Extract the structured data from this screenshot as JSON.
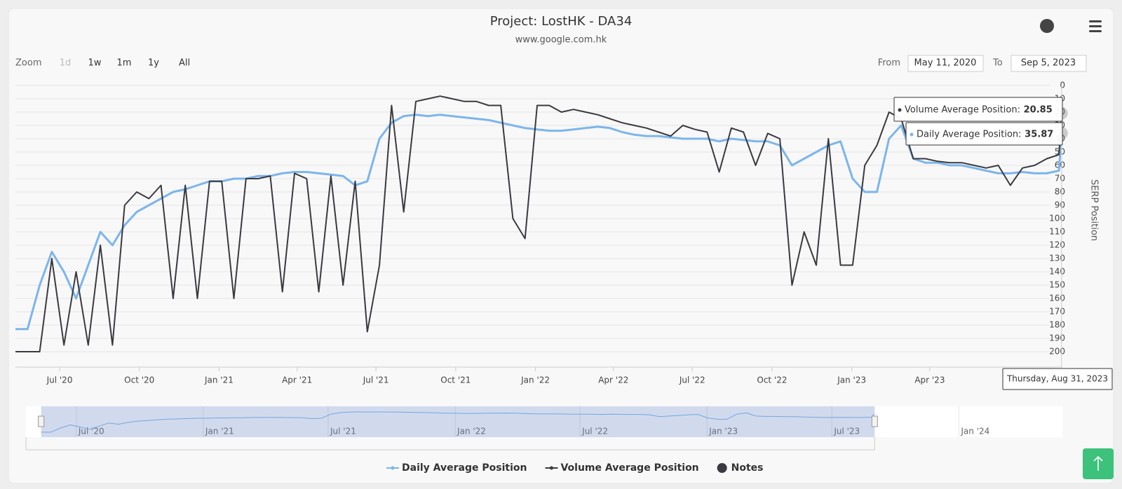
{
  "chart_data": {
    "type": "line",
    "title": "Project: LostHK - DA34",
    "subtitle": "www.google.com.hk",
    "zoom": {
      "label": "Zoom",
      "buttons": [
        "1d",
        "1w",
        "1m",
        "1y",
        "All"
      ]
    },
    "range": {
      "from_label": "From",
      "from": "May 11, 2020",
      "to_label": "To",
      "to": "Sep 5, 2023"
    },
    "y_axis_label": "SERP Position",
    "y_reversed": true,
    "grid": true,
    "ylim": [
      0,
      200
    ],
    "yticks": [
      0,
      10,
      20,
      30,
      40,
      50,
      60,
      70,
      80,
      90,
      100,
      110,
      120,
      130,
      140,
      150,
      160,
      170,
      180,
      190,
      200
    ],
    "xlim": [
      "2020-05-11",
      "2023-09-01"
    ],
    "xticks": [
      {
        "value": "2020-07-01",
        "label": "Jul '20"
      },
      {
        "value": "2020-10-01",
        "label": "Oct '20"
      },
      {
        "value": "2021-01-01",
        "label": "Jan '21"
      },
      {
        "value": "2021-04-01",
        "label": "Apr '21"
      },
      {
        "value": "2021-07-01",
        "label": "Jul '21"
      },
      {
        "value": "2021-10-01",
        "label": "Oct '21"
      },
      {
        "value": "2022-01-01",
        "label": "Jan '22"
      },
      {
        "value": "2022-04-01",
        "label": "Apr '22"
      },
      {
        "value": "2022-07-01",
        "label": "Jul '22"
      },
      {
        "value": "2022-10-01",
        "label": "Oct '22"
      },
      {
        "value": "2023-01-01",
        "label": "Jan '23"
      },
      {
        "value": "2023-04-01",
        "label": "Apr '23"
      }
    ],
    "x": [
      "2020-05-11",
      "2020-05-25",
      "2020-06-08",
      "2020-06-22",
      "2020-07-06",
      "2020-07-20",
      "2020-08-03",
      "2020-08-17",
      "2020-08-31",
      "2020-09-14",
      "2020-09-28",
      "2020-10-12",
      "2020-10-26",
      "2020-11-09",
      "2020-11-23",
      "2020-12-07",
      "2020-12-21",
      "2021-01-04",
      "2021-01-18",
      "2021-02-01",
      "2021-02-15",
      "2021-03-01",
      "2021-03-15",
      "2021-03-29",
      "2021-04-12",
      "2021-04-26",
      "2021-05-10",
      "2021-05-24",
      "2021-06-07",
      "2021-06-21",
      "2021-07-05",
      "2021-07-19",
      "2021-08-02",
      "2021-08-16",
      "2021-08-30",
      "2021-09-13",
      "2021-09-27",
      "2021-10-11",
      "2021-10-25",
      "2021-11-08",
      "2021-11-22",
      "2021-12-06",
      "2021-12-20",
      "2022-01-03",
      "2022-01-17",
      "2022-01-31",
      "2022-02-14",
      "2022-02-28",
      "2022-03-14",
      "2022-03-28",
      "2022-04-11",
      "2022-04-25",
      "2022-05-09",
      "2022-05-23",
      "2022-06-06",
      "2022-06-20",
      "2022-07-04",
      "2022-07-18",
      "2022-08-01",
      "2022-08-15",
      "2022-08-29",
      "2022-09-12",
      "2022-09-26",
      "2022-10-10",
      "2022-10-24",
      "2022-11-07",
      "2022-11-21",
      "2022-12-05",
      "2022-12-19",
      "2023-01-02",
      "2023-01-16",
      "2023-01-30",
      "2023-02-13",
      "2023-02-27",
      "2023-03-13",
      "2023-03-27",
      "2023-04-10",
      "2023-04-24",
      "2023-05-08",
      "2023-05-22",
      "2023-06-05",
      "2023-06-19",
      "2023-07-03",
      "2023-07-17",
      "2023-07-31",
      "2023-08-14",
      "2023-08-28",
      "2023-08-31"
    ],
    "series": [
      {
        "name": "Daily Average Position",
        "color": "#7cb5ec",
        "values": [
          183,
          183,
          150,
          125,
          140,
          160,
          135,
          110,
          120,
          105,
          95,
          90,
          85,
          80,
          78,
          75,
          72,
          72,
          70,
          70,
          68,
          68,
          66,
          65,
          65,
          66,
          67,
          68,
          75,
          72,
          40,
          28,
          23,
          22,
          23,
          22,
          23,
          24,
          25,
          26,
          28,
          30,
          32,
          33,
          34,
          34,
          33,
          32,
          31,
          32,
          35,
          37,
          38,
          38,
          39,
          40,
          40,
          40,
          42,
          40,
          41,
          42,
          42,
          45,
          60,
          55,
          50,
          45,
          42,
          70,
          80,
          80,
          40,
          30,
          55,
          58,
          58,
          60,
          60,
          62,
          64,
          66,
          66,
          65,
          66,
          66,
          64,
          35.87
        ]
      },
      {
        "name": "Volume Average Position",
        "color": "#3a3a40",
        "values": [
          200,
          200,
          200,
          130,
          195,
          140,
          195,
          120,
          195,
          90,
          80,
          85,
          75,
          160,
          75,
          160,
          72,
          72,
          160,
          70,
          70,
          68,
          155,
          66,
          70,
          155,
          68,
          150,
          72,
          185,
          135,
          15,
          95,
          12,
          10,
          8,
          10,
          12,
          12,
          15,
          15,
          100,
          115,
          15,
          15,
          20,
          18,
          20,
          22,
          25,
          28,
          30,
          32,
          35,
          38,
          30,
          33,
          35,
          65,
          32,
          35,
          60,
          36,
          40,
          150,
          110,
          135,
          40,
          135,
          135,
          60,
          45,
          20,
          25,
          55,
          55,
          57,
          58,
          58,
          60,
          62,
          60,
          75,
          62,
          60,
          55,
          52,
          20.85
        ]
      }
    ],
    "notes": {
      "name": "Notes"
    },
    "tooltip": {
      "date": "Thursday, Aug 31, 2023"
    },
    "navigator": {
      "xlim": [
        "2020-04-19",
        "2024-05-30"
      ],
      "selection": [
        "2020-05-11",
        "2023-09-01"
      ],
      "xticks": [
        {
          "value": "2020-07-01",
          "label": "Jul '20"
        },
        {
          "value": "2021-01-01",
          "label": "Jan '21"
        },
        {
          "value": "2021-07-01",
          "label": "Jul '21"
        },
        {
          "value": "2022-01-01",
          "label": "Jan '22"
        },
        {
          "value": "2022-07-01",
          "label": "Jul '22"
        },
        {
          "value": "2023-01-01",
          "label": "Jan '23"
        },
        {
          "value": "2023-07-01",
          "label": "Jul '23"
        },
        {
          "value": "2024-01-01",
          "label": "Jan '24"
        }
      ]
    }
  }
}
